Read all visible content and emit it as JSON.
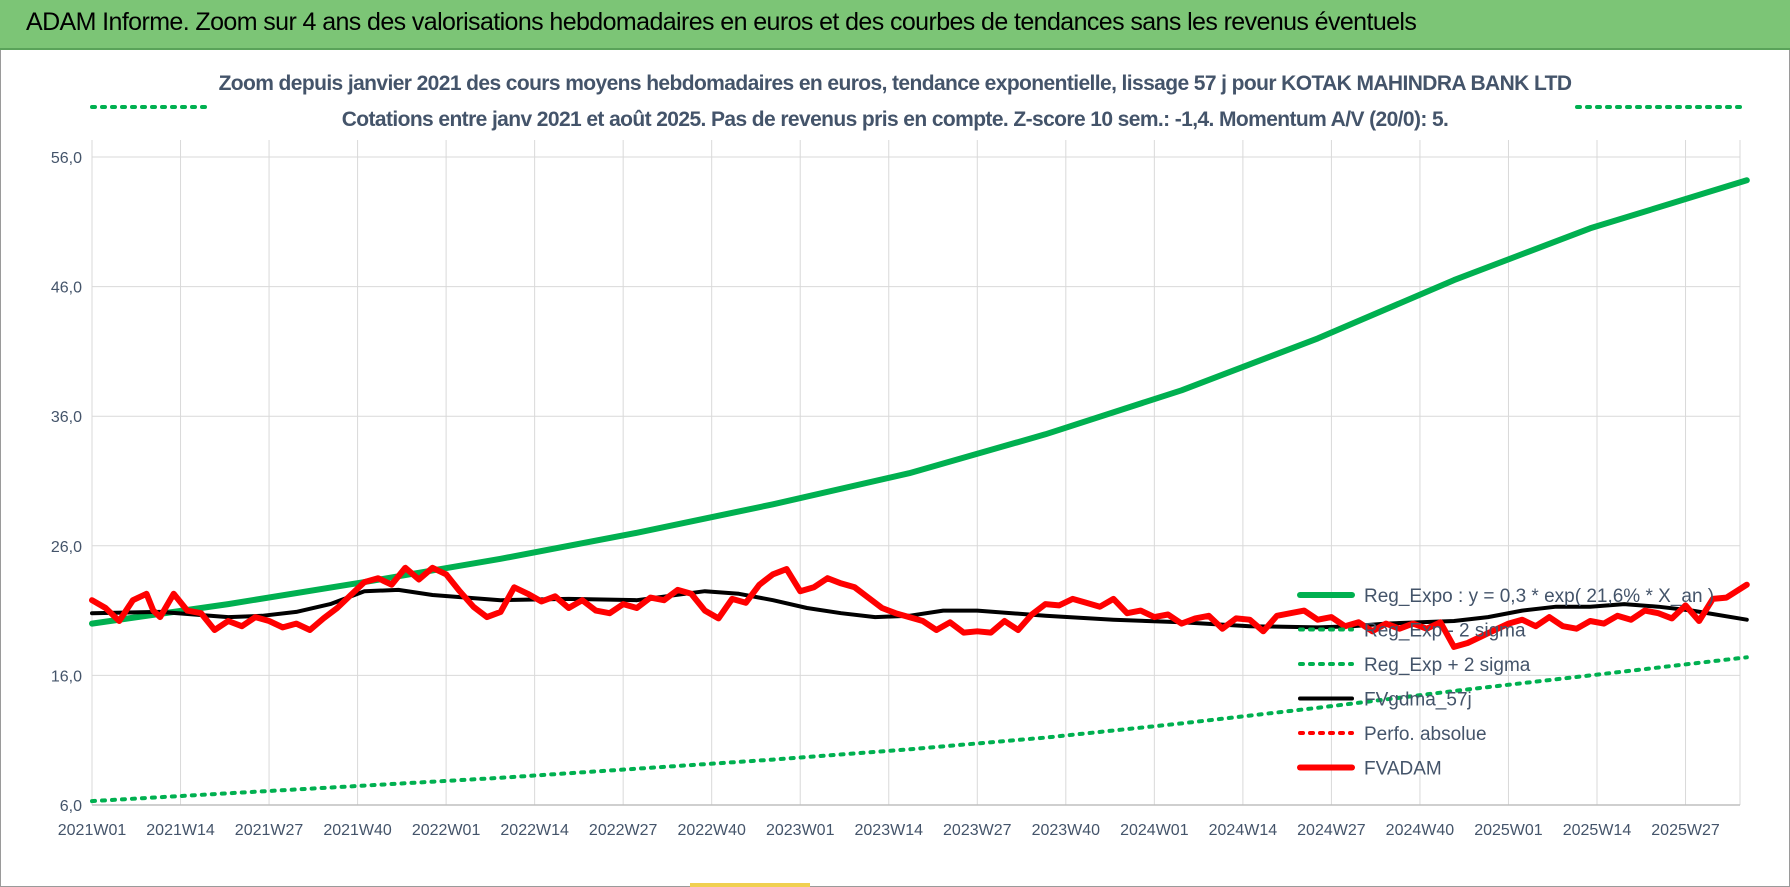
{
  "header": {
    "title": "ADAM Informe. Zoom sur 4 ans des valorisations hebdomadaires en euros et des courbes de tendances sans les revenus éventuels"
  },
  "colors": {
    "banner": "#7cc576",
    "title_text": "#44546a",
    "reg_expo": "#00b050",
    "fvgdma": "#000000",
    "perfo": "#ff0000",
    "fvadam": "#ff0000",
    "grid": "#d9d9d9"
  },
  "chart_data": {
    "type": "line",
    "title": "Zoom depuis janvier 2021 des cours moyens hebdomadaires en euros, tendance exponentielle, lissage 57 j pour KOTAK MAHINDRA BANK LTD",
    "subtitle": "Cotations entre janv 2021 et août 2025.  Pas de revenus pris en compte. Z-score 10 sem.: -1,4. Momentum A/V (20/0): 5.",
    "ylim": [
      6,
      56
    ],
    "yticks": [
      "56,0",
      "46,0",
      "36,0",
      "26,0",
      "16,0",
      "6,0"
    ],
    "ytick_values": [
      56,
      46,
      36,
      26,
      16,
      6
    ],
    "x_tick_labels": [
      "2021W01",
      "2021W14",
      "2021W27",
      "2021W40",
      "2022W01",
      "2022W14",
      "2022W27",
      "2022W40",
      "2023W01",
      "2023W14",
      "2023W27",
      "2023W40",
      "2024W01",
      "2024W14",
      "2024W27",
      "2024W40",
      "2025W01",
      "2025W14",
      "2025W27"
    ],
    "x_tick_weeks": [
      0,
      13,
      26,
      39,
      52,
      65,
      78,
      91,
      104,
      117,
      130,
      143,
      156,
      169,
      182,
      195,
      208,
      221,
      234
    ],
    "n_weeks": 243,
    "grid": true,
    "legend_position": "bottom-right",
    "series": [
      {
        "name": "Reg_Expo : y = 0,3 * exp( 21,6% * X_an )",
        "style": "solid-thick",
        "color": "#00b050",
        "x_weeks": [
          0,
          20,
          40,
          60,
          80,
          100,
          120,
          140,
          160,
          180,
          200,
          220,
          243
        ],
        "values": [
          20.0,
          21.5,
          23.2,
          25.0,
          27.0,
          29.2,
          31.6,
          34.6,
          38.0,
          42.0,
          46.5,
          50.5,
          54.2
        ]
      },
      {
        "name": "Reg_Exp - 2 sigma",
        "style": "dotted",
        "color": "#00b050",
        "x_weeks": [
          0,
          20,
          40,
          60,
          80,
          100,
          120,
          140,
          160,
          180,
          200,
          220,
          243
        ],
        "values": [
          6.3,
          6.9,
          7.5,
          8.1,
          8.8,
          9.5,
          10.3,
          11.2,
          12.3,
          13.5,
          14.8,
          16.0,
          17.4
        ]
      },
      {
        "name": "Reg_Exp + 2 sigma",
        "style": "dotted",
        "color": "#00b050",
        "x_weeks": [],
        "values": []
      },
      {
        "name": "FVgdma_57j",
        "style": "solid",
        "color": "#000000",
        "x_weeks": [
          0,
          10,
          20,
          25,
          30,
          35,
          40,
          45,
          50,
          55,
          60,
          70,
          80,
          90,
          95,
          100,
          105,
          110,
          115,
          120,
          125,
          130,
          140,
          150,
          160,
          170,
          180,
          185,
          190,
          200,
          205,
          210,
          215,
          220,
          225,
          230,
          235,
          243
        ],
        "values": [
          20.8,
          20.9,
          20.5,
          20.6,
          20.9,
          21.5,
          22.5,
          22.6,
          22.2,
          22.0,
          21.8,
          21.9,
          21.8,
          22.5,
          22.3,
          21.8,
          21.2,
          20.8,
          20.5,
          20.6,
          21.0,
          21.0,
          20.6,
          20.3,
          20.1,
          19.8,
          19.7,
          19.8,
          20.0,
          20.2,
          20.5,
          21.0,
          21.3,
          21.3,
          21.5,
          21.3,
          21.0,
          20.3
        ]
      },
      {
        "name": "Perfo. absolue",
        "style": "dotted",
        "color": "#ff0000",
        "x_weeks": [],
        "values": []
      },
      {
        "name": "FVADAM",
        "style": "solid-thick",
        "color": "#ff0000",
        "x_weeks": [
          0,
          2,
          4,
          6,
          8,
          9,
          10,
          12,
          14,
          16,
          18,
          20,
          22,
          24,
          26,
          28,
          30,
          32,
          34,
          36,
          38,
          40,
          42,
          44,
          46,
          48,
          50,
          52,
          54,
          56,
          58,
          60,
          62,
          64,
          66,
          68,
          70,
          72,
          74,
          76,
          78,
          80,
          82,
          84,
          86,
          88,
          90,
          92,
          94,
          96,
          98,
          100,
          102,
          104,
          106,
          108,
          110,
          112,
          114,
          116,
          118,
          120,
          122,
          124,
          126,
          128,
          130,
          132,
          134,
          136,
          138,
          140,
          142,
          144,
          146,
          148,
          150,
          152,
          154,
          156,
          158,
          160,
          162,
          164,
          166,
          168,
          170,
          172,
          174,
          176,
          178,
          180,
          182,
          184,
          186,
          188,
          190,
          192,
          194,
          196,
          198,
          200,
          202,
          204,
          206,
          208,
          210,
          212,
          214,
          216,
          218,
          220,
          222,
          224,
          226,
          228,
          230,
          232,
          234,
          236,
          238,
          240,
          243
        ],
        "values": [
          21.8,
          21.2,
          20.2,
          21.8,
          22.3,
          21.0,
          20.5,
          22.3,
          21.0,
          20.8,
          19.5,
          20.2,
          19.8,
          20.5,
          20.2,
          19.7,
          20.0,
          19.5,
          20.4,
          21.2,
          22.2,
          23.2,
          23.5,
          23.0,
          24.3,
          23.4,
          24.3,
          23.8,
          22.5,
          21.3,
          20.5,
          20.9,
          22.8,
          22.3,
          21.7,
          22.1,
          21.2,
          21.8,
          21.0,
          20.8,
          21.5,
          21.2,
          22.0,
          21.8,
          22.6,
          22.3,
          21.0,
          20.4,
          21.9,
          21.6,
          23.0,
          23.8,
          24.2,
          22.5,
          22.8,
          23.5,
          23.1,
          22.8,
          22.0,
          21.2,
          20.8,
          20.5,
          20.2,
          19.5,
          20.1,
          19.3,
          19.4,
          19.3,
          20.2,
          19.5,
          20.7,
          21.5,
          21.4,
          21.9,
          21.6,
          21.3,
          21.9,
          20.8,
          21.0,
          20.5,
          20.7,
          20.0,
          20.4,
          20.6,
          19.6,
          20.4,
          20.3,
          19.4,
          20.6,
          20.8,
          21.0,
          20.3,
          20.5,
          19.8,
          20.1,
          19.4,
          20.0,
          19.6,
          20.0,
          19.6,
          20.1,
          18.2,
          18.5,
          19.0,
          19.5,
          20.0,
          20.3,
          19.8,
          20.5,
          19.8,
          19.6,
          20.2,
          20.0,
          20.6,
          20.3,
          21.0,
          20.8,
          20.4,
          21.4,
          20.2,
          21.9,
          22.0,
          23.0
        ]
      }
    ]
  }
}
